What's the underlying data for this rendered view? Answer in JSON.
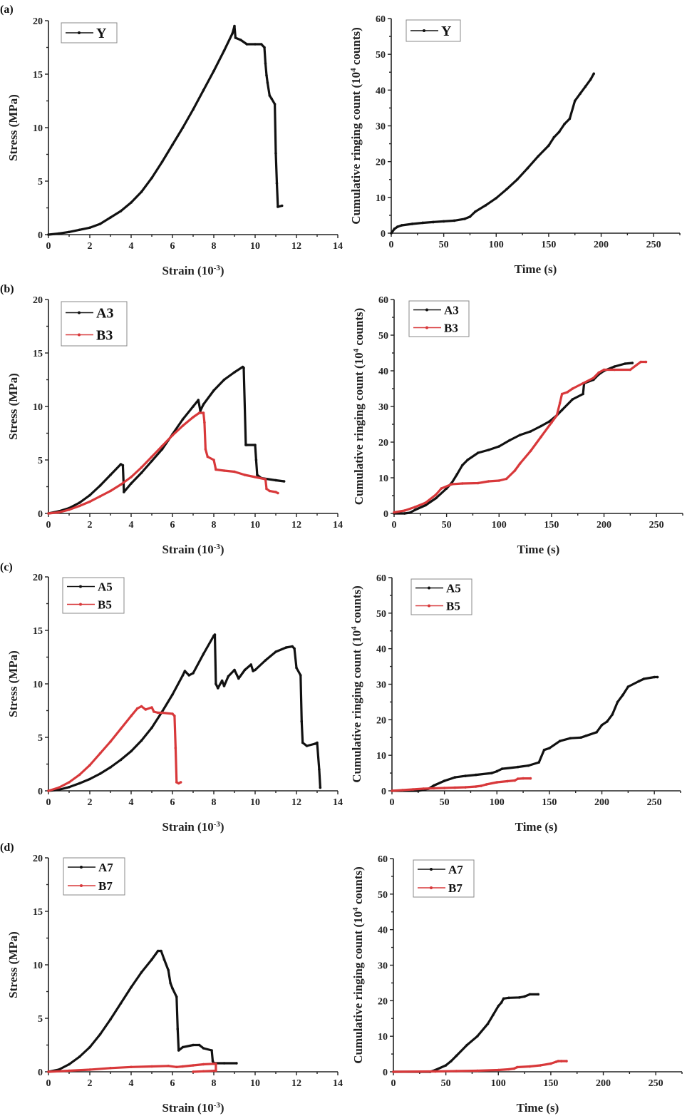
{
  "figure": {
    "panel_labels": [
      "(a)",
      "(b)",
      "(c)",
      "(d)"
    ]
  },
  "colors": {
    "black_series": "#111111",
    "red_series": "#d8383a"
  },
  "chart_data": [
    {
      "id": "a-stress",
      "panel": "(a)",
      "type": "line",
      "title": "",
      "xlabel": "Strain (10^-3)",
      "ylabel": "Stress (MPa)",
      "xlim": [
        0,
        14
      ],
      "ylim": [
        0,
        20
      ],
      "xticks": [
        0,
        2,
        4,
        6,
        8,
        10,
        12,
        14
      ],
      "yticks": [
        0,
        5,
        10,
        15,
        20
      ],
      "grid": false,
      "legend": "top-left",
      "series": [
        {
          "name": "Y",
          "color": "#111111",
          "x": [
            0,
            0.5,
            1,
            1.5,
            2,
            2.5,
            3,
            3.5,
            4,
            4.5,
            5,
            5.5,
            6,
            6.5,
            7,
            7.5,
            8,
            8.5,
            8.9,
            9.0,
            9.05,
            9.3,
            9.6,
            10.0,
            10.3,
            10.45,
            10.5,
            10.55,
            10.6,
            10.7,
            10.8,
            10.95,
            11.0,
            11.05,
            11.1,
            11.3
          ],
          "y": [
            0,
            0.1,
            0.25,
            0.45,
            0.65,
            1.0,
            1.6,
            2.2,
            3.0,
            4.0,
            5.3,
            6.8,
            8.4,
            10.0,
            11.7,
            13.5,
            15.3,
            17.2,
            18.8,
            19.5,
            18.4,
            18.2,
            17.8,
            17.8,
            17.8,
            17.5,
            16.0,
            14.9,
            14.2,
            13.0,
            12.7,
            12.2,
            7.6,
            4.8,
            2.6,
            2.7
          ]
        }
      ]
    },
    {
      "id": "a-ae",
      "panel": "(a)",
      "type": "line",
      "title": "",
      "xlabel": "Time (s)",
      "ylabel": "Cumulative ringing count (10^4 counts)",
      "xlim": [
        0,
        275
      ],
      "ylim": [
        0,
        60
      ],
      "xticks": [
        0,
        50,
        100,
        150,
        200,
        250
      ],
      "yticks": [
        0,
        10,
        20,
        30,
        40,
        50,
        60
      ],
      "grid": false,
      "legend": "top-left",
      "series": [
        {
          "name": "Y",
          "color": "#111111",
          "x": [
            0,
            3,
            6,
            10,
            20,
            30,
            40,
            50,
            60,
            70,
            75,
            80,
            90,
            100,
            110,
            120,
            130,
            140,
            150,
            155,
            160,
            165,
            170,
            175,
            180,
            185,
            190,
            193
          ],
          "y": [
            0,
            1.2,
            1.8,
            2.2,
            2.6,
            2.9,
            3.1,
            3.3,
            3.5,
            4.0,
            4.6,
            6.0,
            7.8,
            9.8,
            12.3,
            15.0,
            18.2,
            21.5,
            24.5,
            26.8,
            28.3,
            30.5,
            32.0,
            37.0,
            39.0,
            41.0,
            43.0,
            44.6
          ]
        }
      ]
    },
    {
      "id": "b-stress",
      "panel": "(b)",
      "type": "line",
      "title": "",
      "xlabel": "Strain (10^-3)",
      "ylabel": "Stress (MPa)",
      "xlim": [
        0,
        14
      ],
      "ylim": [
        0,
        20
      ],
      "xticks": [
        0,
        2,
        4,
        6,
        8,
        10,
        12,
        14
      ],
      "yticks": [
        0,
        5,
        10,
        15,
        20
      ],
      "grid": false,
      "legend": "top-left",
      "series": [
        {
          "name": "A3",
          "color": "#111111",
          "x": [
            0,
            0.5,
            1,
            1.5,
            2,
            2.5,
            3,
            3.5,
            3.6,
            3.65,
            4,
            4.5,
            5,
            5.5,
            6,
            6.5,
            7,
            7.25,
            7.35,
            7.5,
            8,
            8.5,
            9,
            9.4,
            9.45,
            9.55,
            9.6,
            10.0,
            10.05,
            10.1,
            10.3,
            11.0,
            11.4
          ],
          "y": [
            0,
            0.2,
            0.5,
            1.0,
            1.7,
            2.6,
            3.6,
            4.6,
            4.5,
            2.0,
            2.8,
            3.8,
            4.9,
            6.0,
            7.4,
            8.8,
            10.0,
            10.6,
            9.6,
            10.2,
            11.5,
            12.5,
            13.2,
            13.7,
            13.6,
            6.4,
            6.4,
            6.4,
            5.0,
            3.6,
            3.3,
            3.1,
            3.0
          ]
        },
        {
          "name": "B3",
          "color": "#d8383a",
          "x": [
            0,
            0.5,
            1,
            1.5,
            2,
            2.5,
            3,
            3.5,
            4,
            4.5,
            5,
            5.5,
            6,
            6.5,
            7,
            7.3,
            7.5,
            7.55,
            7.6,
            7.7,
            8.0,
            8.1,
            8.5,
            9.0,
            9.5,
            10.0,
            10.5,
            10.55,
            10.7,
            11.0,
            11.1
          ],
          "y": [
            0,
            0.1,
            0.35,
            0.7,
            1.1,
            1.6,
            2.1,
            2.7,
            3.4,
            4.3,
            5.3,
            6.3,
            7.3,
            8.2,
            9.0,
            9.4,
            9.4,
            8.5,
            6.0,
            5.3,
            5.0,
            4.1,
            4.0,
            3.9,
            3.6,
            3.4,
            3.2,
            2.3,
            2.1,
            2.0,
            1.9
          ]
        }
      ]
    },
    {
      "id": "b-ae",
      "panel": "(b)",
      "type": "line",
      "title": "",
      "xlabel": "Time (s)",
      "ylabel": "Cumulative ringing count (10^4 counts)",
      "xlim": [
        0,
        275
      ],
      "ylim": [
        0,
        60
      ],
      "xticks": [
        0,
        50,
        100,
        150,
        200,
        250
      ],
      "yticks": [
        0,
        10,
        20,
        30,
        40,
        50,
        60
      ],
      "grid": false,
      "legend": "top-left",
      "series": [
        {
          "name": "A3",
          "color": "#111111",
          "x": [
            0,
            10,
            15,
            20,
            30,
            40,
            50,
            55,
            60,
            65,
            70,
            80,
            90,
            100,
            110,
            120,
            130,
            140,
            148,
            155,
            160,
            170,
            180,
            181,
            190,
            195,
            200,
            210,
            220,
            227
          ],
          "y": [
            0,
            0,
            0.2,
            1.0,
            2.3,
            4.3,
            7.0,
            8.6,
            11.0,
            13.5,
            15.0,
            17.0,
            17.8,
            18.8,
            20.5,
            22.0,
            23.0,
            24.5,
            25.8,
            27.5,
            29.0,
            32.0,
            33.5,
            36.5,
            37.5,
            39.0,
            40.0,
            41.2,
            42.0,
            42.2
          ]
        },
        {
          "name": "B3",
          "color": "#d8383a",
          "x": [
            0,
            10,
            20,
            30,
            40,
            45,
            55,
            65,
            80,
            90,
            100,
            107,
            115,
            120,
            130,
            140,
            150,
            155,
            158,
            160,
            165,
            170,
            180,
            190,
            195,
            200,
            210,
            225,
            235,
            240
          ],
          "y": [
            0.3,
            0.8,
            1.8,
            3.0,
            5.3,
            7.0,
            8.2,
            8.4,
            8.5,
            9.0,
            9.2,
            9.7,
            12.0,
            14.0,
            17.5,
            21.5,
            25.5,
            27.5,
            31.0,
            33.5,
            34.0,
            35.0,
            36.5,
            38.0,
            39.5,
            40.3,
            40.3,
            40.3,
            42.5,
            42.5
          ]
        }
      ]
    },
    {
      "id": "c-stress",
      "panel": "(c)",
      "type": "line",
      "title": "",
      "xlabel": "Strain (10^-3)",
      "ylabel": "Stress (MPa)",
      "xlim": [
        0,
        14
      ],
      "ylim": [
        0,
        20
      ],
      "xticks": [
        0,
        2,
        4,
        6,
        8,
        10,
        12,
        14
      ],
      "yticks": [
        0,
        5,
        10,
        15,
        20
      ],
      "grid": false,
      "legend": "top-left",
      "series": [
        {
          "name": "A5",
          "color": "#111111",
          "x": [
            0,
            0.5,
            1,
            1.5,
            2,
            2.5,
            3,
            3.5,
            4,
            4.5,
            5,
            5.5,
            6,
            6.5,
            6.6,
            6.8,
            7.0,
            7.5,
            8.0,
            8.05,
            8.1,
            8.2,
            8.4,
            8.5,
            8.7,
            9.0,
            9.2,
            9.5,
            9.8,
            9.9,
            10.0,
            10.5,
            11.0,
            11.5,
            11.8,
            11.9,
            12.0,
            12.2,
            12.25,
            12.3,
            12.5,
            12.9,
            13.0,
            13.1,
            13.15
          ],
          "y": [
            0,
            0.1,
            0.35,
            0.7,
            1.1,
            1.6,
            2.2,
            2.9,
            3.7,
            4.7,
            5.9,
            7.4,
            9.0,
            10.8,
            11.2,
            10.8,
            11.0,
            12.8,
            14.5,
            14.6,
            10.0,
            9.6,
            10.3,
            9.8,
            10.7,
            11.3,
            10.5,
            11.3,
            11.8,
            11.2,
            11.3,
            12.2,
            13.0,
            13.4,
            13.5,
            13.3,
            11.5,
            10.8,
            6.5,
            4.5,
            4.2,
            4.4,
            4.5,
            2.0,
            0.3
          ]
        },
        {
          "name": "B5",
          "color": "#d8383a",
          "x": [
            0,
            0.5,
            1,
            1.5,
            2,
            2.5,
            3,
            3.5,
            4,
            4.3,
            4.5,
            4.7,
            5.0,
            5.1,
            5.3,
            5.5,
            6.0,
            6.1,
            6.15,
            6.2,
            6.3,
            6.4
          ],
          "y": [
            0,
            0.3,
            0.8,
            1.5,
            2.4,
            3.5,
            4.6,
            5.8,
            7.0,
            7.7,
            7.9,
            7.6,
            7.8,
            7.4,
            7.3,
            7.3,
            7.2,
            7.0,
            4.0,
            0.8,
            0.7,
            0.8
          ]
        }
      ]
    },
    {
      "id": "c-ae",
      "panel": "(c)",
      "type": "line",
      "title": "",
      "xlabel": "Time (s)",
      "ylabel": "Cumulative ringing count (10^4 counts)",
      "xlim": [
        0,
        275
      ],
      "ylim": [
        0,
        60
      ],
      "xticks": [
        0,
        50,
        100,
        150,
        200,
        250
      ],
      "yticks": [
        0,
        10,
        20,
        30,
        40,
        50,
        60
      ],
      "grid": false,
      "legend": "top-left",
      "series": [
        {
          "name": "A5",
          "color": "#111111",
          "x": [
            0,
            25,
            35,
            40,
            50,
            60,
            70,
            80,
            95,
            100,
            105,
            120,
            130,
            140,
            145,
            150,
            160,
            170,
            180,
            185,
            195,
            200,
            205,
            210,
            215,
            220,
            225,
            235,
            240,
            250,
            253
          ],
          "y": [
            0,
            0,
            0.6,
            1.5,
            2.8,
            3.8,
            4.2,
            4.5,
            5.0,
            5.5,
            6.2,
            6.7,
            7.1,
            8.0,
            11.5,
            12.0,
            14.0,
            14.8,
            15.0,
            15.5,
            16.5,
            18.5,
            19.5,
            21.5,
            25.0,
            27.0,
            29.3,
            30.8,
            31.5,
            32.0,
            32.0
          ]
        },
        {
          "name": "B5",
          "color": "#d8383a",
          "x": [
            0,
            10,
            20,
            30,
            40,
            50,
            60,
            70,
            80,
            85,
            90,
            100,
            110,
            117,
            120,
            125,
            132
          ],
          "y": [
            0,
            0.2,
            0.4,
            0.6,
            0.7,
            0.8,
            0.9,
            1.0,
            1.2,
            1.4,
            1.8,
            2.4,
            2.7,
            2.9,
            3.4,
            3.5,
            3.5
          ]
        }
      ]
    },
    {
      "id": "d-stress",
      "panel": "(d)",
      "type": "line",
      "title": "",
      "xlabel": "Strain (10^-3)",
      "ylabel": "Stress (MPa)",
      "xlim": [
        0,
        14
      ],
      "ylim": [
        0,
        20
      ],
      "xticks": [
        0,
        2,
        4,
        6,
        8,
        10,
        12,
        14
      ],
      "yticks": [
        0,
        5,
        10,
        15,
        20
      ],
      "grid": false,
      "legend": "top-left",
      "series": [
        {
          "name": "A7",
          "color": "#111111",
          "x": [
            0,
            0.5,
            1,
            1.5,
            2,
            2.5,
            3,
            3.5,
            4,
            4.5,
            5,
            5.3,
            5.45,
            5.6,
            5.8,
            5.9,
            6.0,
            6.2,
            6.25,
            6.3,
            6.5,
            7.0,
            7.3,
            7.5,
            7.9,
            7.95,
            8.0,
            8.5,
            9.1
          ],
          "y": [
            0,
            0.2,
            0.7,
            1.4,
            2.3,
            3.5,
            4.9,
            6.4,
            7.9,
            9.3,
            10.5,
            11.3,
            11.3,
            10.5,
            9.5,
            8.3,
            7.8,
            7.0,
            4.0,
            2.0,
            2.3,
            2.5,
            2.5,
            2.2,
            2.0,
            1.0,
            0.8,
            0.8,
            0.8
          ]
        },
        {
          "name": "B7",
          "color": "#d8383a",
          "x": [
            0,
            1,
            2,
            3,
            4,
            5,
            5.8,
            6.2,
            6.5,
            7.0,
            7.5,
            8.0,
            8.1,
            8.1,
            7.5,
            7.0
          ],
          "y": [
            0,
            0.1,
            0.2,
            0.35,
            0.45,
            0.5,
            0.55,
            0.45,
            0.5,
            0.6,
            0.7,
            0.75,
            0.75,
            0.1,
            0.05,
            0
          ]
        }
      ]
    },
    {
      "id": "d-ae",
      "panel": "(d)",
      "type": "line",
      "title": "",
      "xlabel": "Time (s)",
      "ylabel": "Cumulative ringing count (10^4 counts)",
      "xlim": [
        0,
        275
      ],
      "ylim": [
        0,
        60
      ],
      "xticks": [
        0,
        50,
        100,
        150,
        200,
        250
      ],
      "yticks": [
        0,
        10,
        20,
        30,
        40,
        50,
        60
      ],
      "grid": false,
      "legend": "top-left",
      "series": [
        {
          "name": "A7",
          "color": "#111111",
          "x": [
            0,
            35,
            40,
            50,
            55,
            60,
            70,
            80,
            90,
            95,
            100,
            103,
            105,
            110,
            120,
            125,
            130,
            138
          ],
          "y": [
            0,
            0,
            0.5,
            1.8,
            3.0,
            4.5,
            7.5,
            10.0,
            13.5,
            16.0,
            18.5,
            19.5,
            20.6,
            20.8,
            20.9,
            21.2,
            21.8,
            21.8
          ]
        },
        {
          "name": "B7",
          "color": "#d8383a",
          "x": [
            0,
            40,
            60,
            80,
            100,
            110,
            115,
            118,
            130,
            140,
            150,
            155,
            157,
            160,
            165
          ],
          "y": [
            0,
            0.1,
            0.2,
            0.3,
            0.5,
            0.7,
            0.9,
            1.3,
            1.5,
            1.8,
            2.3,
            2.8,
            3.0,
            3.0,
            3.0
          ]
        }
      ]
    }
  ]
}
